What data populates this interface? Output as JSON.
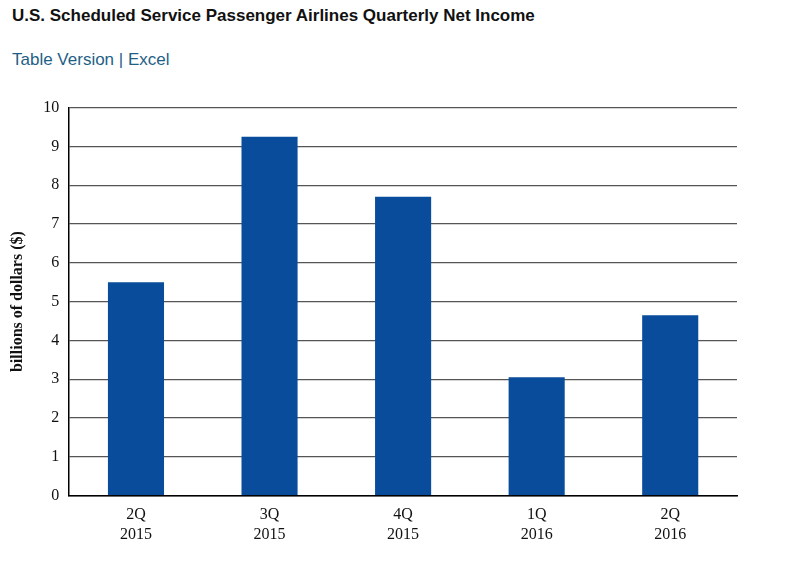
{
  "chart_data": {
    "type": "bar",
    "title": "U.S. Scheduled Service Passenger Airlines Quarterly Net Income",
    "subtitle": "Table Version | Excel",
    "y_label": "billions of dollars ($)",
    "categories": [
      "2Q\n2015",
      "3Q\n2015",
      "4Q\n2015",
      "1Q\n2016",
      "2Q\n2016"
    ],
    "values": [
      5.5,
      9.25,
      7.7,
      3.05,
      4.65
    ],
    "color": "#0a4c9c",
    "ylim": [
      0,
      10
    ],
    "yticks": [
      0,
      1,
      2,
      3,
      4,
      5,
      6,
      7,
      8,
      9,
      10
    ],
    "grid": true
  }
}
